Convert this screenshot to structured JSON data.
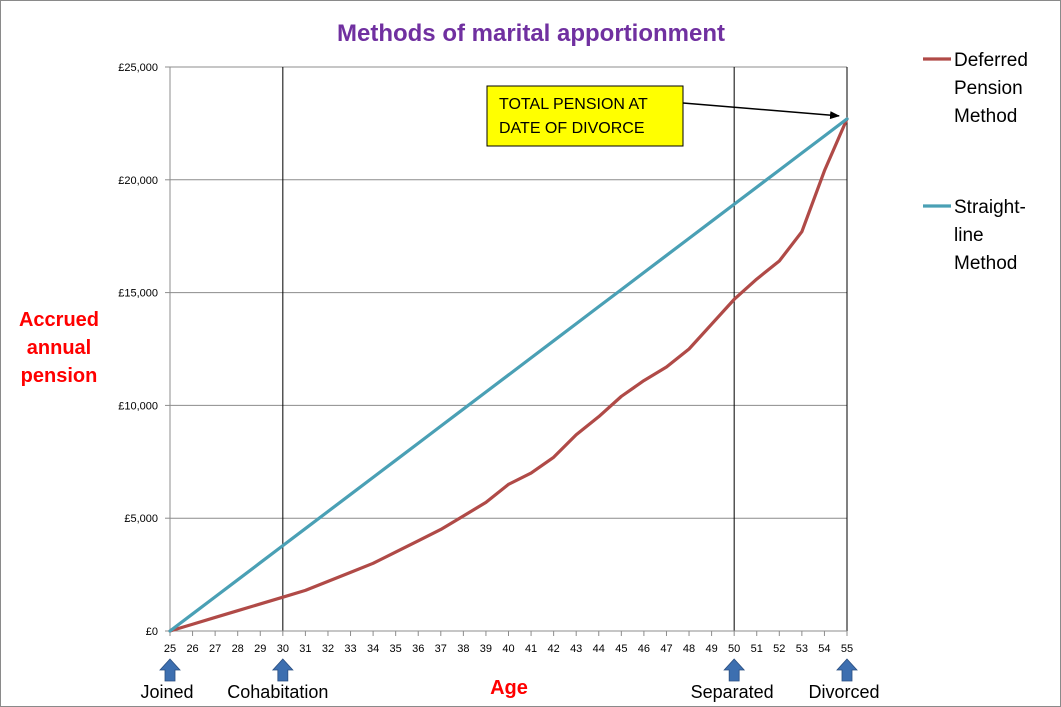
{
  "chart_data": {
    "type": "line",
    "title": "Methods of marital apportionment",
    "ylabel": [
      "Accrued",
      "annual",
      "pension"
    ],
    "xlabel": "Age",
    "x": [
      25,
      26,
      27,
      28,
      29,
      30,
      31,
      32,
      33,
      34,
      35,
      36,
      37,
      38,
      39,
      40,
      41,
      42,
      43,
      44,
      45,
      46,
      47,
      48,
      49,
      50,
      51,
      52,
      53,
      54,
      55
    ],
    "xlim": [
      25,
      55
    ],
    "ylim": [
      0,
      25000
    ],
    "yticks": [
      0,
      5000,
      10000,
      15000,
      20000,
      25000
    ],
    "ytick_labels": [
      "£0",
      "£5,000",
      "£10,000",
      "£15,000",
      "£20,000",
      "£25,000"
    ],
    "grid": "horizontal",
    "legend_position": "right",
    "series": [
      {
        "name": "Deferred Pension Method",
        "legend_lines": [
          "Deferred",
          "Pension",
          "Method"
        ],
        "color": "#b04a47",
        "values": [
          0,
          300,
          600,
          900,
          1200,
          1500,
          1800,
          2200,
          2600,
          3000,
          3500,
          4000,
          4500,
          5100,
          5700,
          6500,
          7000,
          7700,
          8700,
          9500,
          10400,
          11100,
          11700,
          12500,
          13600,
          14700,
          15600,
          16400,
          17700,
          20400,
          22700
        ]
      },
      {
        "name": "Straight-line Method",
        "legend_lines": [
          "Straight-",
          "line",
          "Method"
        ],
        "color": "#4aa0b5",
        "values": [
          0,
          757,
          1513,
          2270,
          3027,
          3783,
          4540,
          5297,
          6053,
          6810,
          7567,
          8323,
          9080,
          9837,
          10593,
          11350,
          12107,
          12863,
          13620,
          14377,
          15133,
          15890,
          16647,
          17403,
          18160,
          18917,
          19673,
          20430,
          21187,
          21943,
          22700
        ]
      }
    ],
    "events": [
      {
        "label": "Joined",
        "age": 25,
        "arrow": true,
        "vline": false
      },
      {
        "label": "Cohabitation",
        "age": 30,
        "arrow": true,
        "vline": true
      },
      {
        "label": "Separated",
        "age": 50,
        "arrow": true,
        "vline": true
      },
      {
        "label": "Divorced",
        "age": 55,
        "arrow": true,
        "vline": true
      }
    ],
    "annotation": {
      "lines": [
        "TOTAL PENSION AT",
        "DATE OF DIVORCE"
      ],
      "box_color": "#ffff00",
      "points_to": {
        "age": 55,
        "value": 22700
      }
    }
  }
}
